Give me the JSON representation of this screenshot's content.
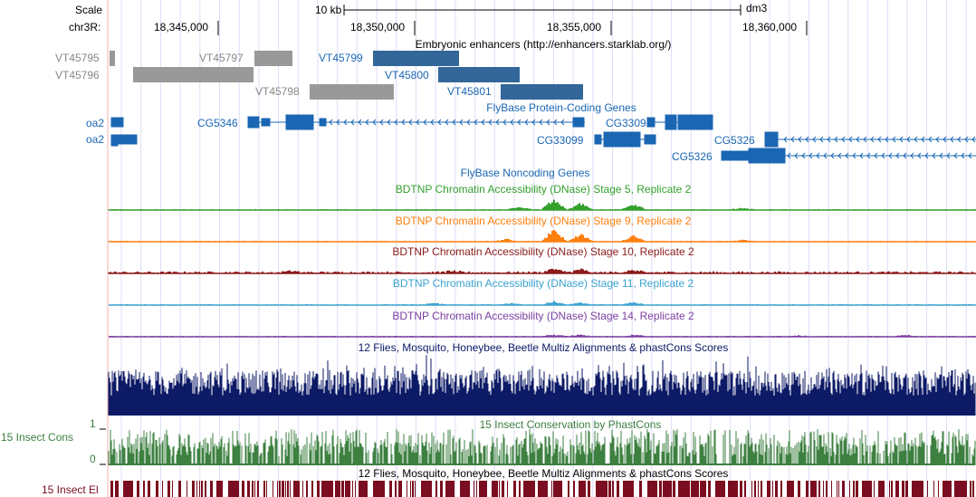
{
  "ruler": {
    "scale_label": "Scale",
    "chrom_label": "chr3R:",
    "scale_bar_label": "10 kb",
    "assembly": "dm3",
    "positions": [
      "18,345,000",
      "18,350,000",
      "18,355,000",
      "18,360,000"
    ]
  },
  "enhancers": {
    "title": "Embryonic enhancers (http://enhancers.starklab.org/)",
    "items": [
      "VT45795",
      "VT45796",
      "VT45797",
      "VT45798",
      "VT45799",
      "VT45800",
      "VT45801"
    ],
    "colors": {
      "gray": "#999999",
      "blue": "#336699",
      "gray_text": "#888888"
    }
  },
  "genes": {
    "title": "FlyBase Protein-Coding Genes",
    "items": [
      "oa2",
      "oa2",
      "CG5346",
      "CG33093",
      "CG33099",
      "CG5326",
      "CG5326"
    ],
    "color": "#1a66b3"
  },
  "noncoding": {
    "title": "FlyBase Noncoding Genes"
  },
  "dnase": [
    {
      "title": "BDTNP Chromatin Accessibility (DNase) Stage 5, Replicate 2",
      "color": "#33a02c"
    },
    {
      "title": "BDTNP Chromatin Accessibility (DNase) Stage 9, Replicate 2",
      "color": "#ff7f0e"
    },
    {
      "title": "BDTNP Chromatin Accessibility (DNase) Stage 10, Replicate 2",
      "color": "#8b1a1a"
    },
    {
      "title": "BDTNP Chromatin Accessibility (DNase) Stage 11, Replicate 2",
      "color": "#3ba3d0"
    },
    {
      "title": "BDTNP Chromatin Accessibility (DNase) Stage 14, Replicate 2",
      "color": "#7b3fa0"
    }
  ],
  "multiz": {
    "title": "12 Flies, Mosquito, Honeybee, Beetle Multiz Alignments & phastCons Scores",
    "color": "#0d1a66"
  },
  "cons": {
    "title": "15 Insect Conservation by PhastCons",
    "side_label": "15 Insect Cons",
    "axis_max": "1",
    "axis_min": "0",
    "color": "#3d8040"
  },
  "elements": {
    "title": "12 Flies, Mosquito, Honeybee, Beetle Multiz Alignments & phastCons Scores",
    "side_label": "15 Insect El",
    "color": "#7a0d1f"
  }
}
